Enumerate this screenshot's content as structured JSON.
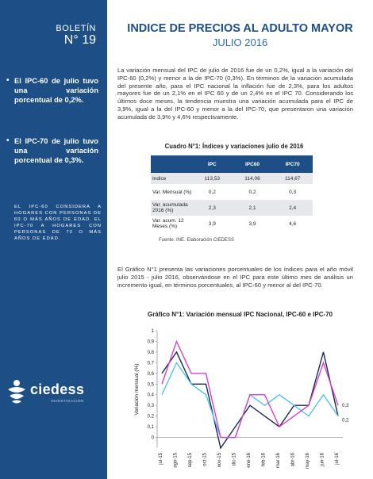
{
  "sidebar": {
    "bulletin_label": "BOLETÍN",
    "bulletin_number": "N° 19",
    "highlights": [
      "El IPC-60 de julio tuvo una variación porcentual de 0,2%.",
      "El IPC-70 de julio tuvo una variación porcentual de 0,3%."
    ],
    "note": "EL IPC-60 CONSIDERA A HOGARES CON PERSONAS DE 60 O MÁS AÑOS DE EDAD. EL IPC-70 A HOGARES CON PERSONAS DE 70 O MÁS AÑOS DE EDAD.",
    "logo_text": "ciedess",
    "logo_sub": "INVESTIGACIÓN"
  },
  "header": {
    "title": "INDICE DE PRECIOS AL ADULTO MAYOR",
    "subtitle": "JULIO 2016"
  },
  "body": {
    "paragraph1": "La variación mensual del IPC de julio de 2016 fue de un 0,2%, igual a la variación del IPC-60 (0,2%) y menor a la de IPC-70 (0,3%). En términos de la variación acumulada del presente año, para el IPC nacional la inflación fue de 2,3%, para los adultos mayores fue de un 2,1% en el IPC 60 y de un 2,4% en el IPC 70. Considerando los últimos doce meses, la tendencia muestra una variación acumulada para el IPC de 3,9%, igual a la del IPC-60 y menor a la del IPC-70, que presentaron una variación acumulada de 3,9% y 4,6% respectivamente.",
    "paragraph2": "El Gráfico N°1 presenta las variaciones porcentuales de los índices para el año móvil julio 2015 - julio 2016, observándose en el IPC para este último mes de análisis un incremento igual, en términos porcentuales, al IPC-60 y menor al del IPC-70."
  },
  "table": {
    "title": "Cuadro N°1: Índices y variaciones julio de 2016",
    "columns": [
      "",
      "IPC",
      "IPC60",
      "IPC70"
    ],
    "rows": [
      {
        "label": "Indice",
        "values": [
          "113,53",
          "114,06",
          "114,67"
        ]
      },
      {
        "label": "Var. Mensual (%)",
        "values": [
          "0,2",
          "0,2",
          "0,3"
        ]
      },
      {
        "label": "Var. acumulada 2016 (%)",
        "values": [
          "2,3",
          "2,1",
          "2,4"
        ]
      },
      {
        "label": "Var. acum. 12 Meses (%)",
        "values": [
          "3,9",
          "3,9",
          "4,6"
        ]
      }
    ],
    "source": "Fuente: INE. Elaboración CIEDESS"
  },
  "chart_data": {
    "type": "line",
    "title": "Gráfico N°1: Variación mensual IPC Nacional, IPC-60 e IPC-70",
    "ylabel": "Variación mensual (%)",
    "xlabel": "",
    "categories": [
      "jul-15",
      "ago-15",
      "sep-15",
      "oct-15",
      "nov-15",
      "dic-15",
      "ene-16",
      "feb-16",
      "mar-16",
      "abr-16",
      "may-16",
      "jun-16",
      "jul-16"
    ],
    "ylim": [
      -0.1,
      1.0
    ],
    "yticks": [
      0,
      0.1,
      0.2,
      0.3,
      0.4,
      0.5,
      0.6,
      0.7,
      0.8,
      0.9,
      1.0
    ],
    "ytick_labels": [
      "0",
      "0,1",
      "0,2",
      "0,3",
      "0,4",
      "0,5",
      "0,6",
      "0,7",
      "0,8",
      "0,9",
      "1"
    ],
    "series": [
      {
        "values": [
          0.6,
          0.8,
          0.5,
          0.5,
          -0.1,
          0.1,
          0.3,
          0.2,
          0.1,
          0.3,
          0.3,
          0.8,
          0.2
        ],
        "color": "#1a2a55"
      },
      {
        "values": [
          0.4,
          0.7,
          0.5,
          0.4,
          0.0,
          0.0,
          0.4,
          0.3,
          0.4,
          0.3,
          0.2,
          0.4,
          0.2
        ],
        "color": "#4fc3e8"
      },
      {
        "values": [
          0.5,
          0.9,
          0.6,
          0.6,
          0.0,
          0.0,
          0.4,
          0.4,
          0.1,
          0.2,
          0.3,
          0.7,
          0.3
        ],
        "color": "#d642c8"
      }
    ],
    "end_labels": [
      "0,3",
      "0,2"
    ],
    "grid": false,
    "legend": "none"
  }
}
